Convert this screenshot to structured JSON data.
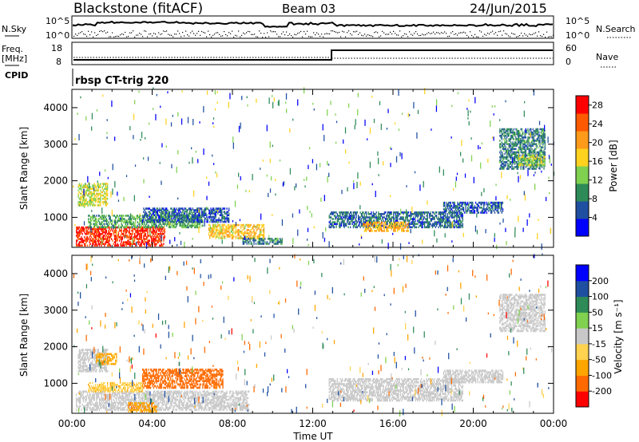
{
  "header": {
    "station": "Blackstone (fitACF)",
    "beam": "Beam 03",
    "date": "24/Jun/2015"
  },
  "top_panels": {
    "nsky_label": "N.Sky",
    "nsearch_label": "N.Search",
    "noise_ticks_left": [
      "10^5",
      "10^0"
    ],
    "noise_ticks_right": [
      "10^5",
      "10^0"
    ],
    "freq_label_top": "Freq.",
    "freq_label_bottom": "[MHz]",
    "freq_ticks": [
      "18",
      "8"
    ],
    "nave_label": "Nave",
    "nave_ticks": [
      "60",
      "0"
    ],
    "cpid_label": "CPID",
    "cpid_value": "rbsp CT-trig 220"
  },
  "colors": {
    "power_scale": [
      "#0000ff",
      "#1f4fa0",
      "#2e8b57",
      "#7fd14f",
      "#ffd21f",
      "#ff9a1a",
      "#ff5a00",
      "#ff0000"
    ],
    "velocity_scale": [
      "#ff0000",
      "#ff6a00",
      "#ffa500",
      "#ffd24f",
      "#c8c8c8",
      "#7fd14f",
      "#2e8b57",
      "#1f4fa0",
      "#0000ff"
    ],
    "ground_scatter": "#bebebe"
  },
  "chart_data": [
    {
      "type": "heatmap",
      "title": "",
      "xlabel": "",
      "ylabel": "Slant Range [km]",
      "xlim": [
        0,
        24
      ],
      "ylim": [
        180,
        4500
      ],
      "x_ticks": [
        "00:00",
        "04:00",
        "08:00",
        "12:00",
        "16:00",
        "20:00",
        "00:00"
      ],
      "y_ticks": [
        "1000",
        "2000",
        "3000",
        "4000"
      ],
      "colorbar_label": "Power [dB]",
      "colorbar_ticks": [
        "4",
        "8",
        "12",
        "16",
        "20",
        "24",
        "28"
      ],
      "colorbar_range": [
        0,
        30
      ],
      "regions": [
        {
          "t": [
            0.2,
            4.6
          ],
          "r": [
            200,
            700
          ],
          "level": 27
        },
        {
          "t": [
            0.3,
            1.8
          ],
          "r": [
            1300,
            1900
          ],
          "level": 15
        },
        {
          "t": [
            0.8,
            6.5
          ],
          "r": [
            700,
            1050
          ],
          "level": 11
        },
        {
          "t": [
            3.5,
            7.8
          ],
          "r": [
            850,
            1250
          ],
          "level": 6
        },
        {
          "t": [
            6.8,
            9.6
          ],
          "r": [
            400,
            800
          ],
          "level": 18
        },
        {
          "t": [
            8.5,
            10.5
          ],
          "r": [
            250,
            400
          ],
          "level": 8
        },
        {
          "t": [
            12.8,
            19.5
          ],
          "r": [
            700,
            1150
          ],
          "level": 7
        },
        {
          "t": [
            14.5,
            16.8
          ],
          "r": [
            600,
            850
          ],
          "level": 19
        },
        {
          "t": [
            18.5,
            21.5
          ],
          "r": [
            1100,
            1400
          ],
          "level": 6
        },
        {
          "t": [
            21.3,
            23.6
          ],
          "r": [
            2300,
            3400
          ],
          "level": 8
        },
        {
          "t": [
            22.2,
            23.6
          ],
          "r": [
            2400,
            2700
          ],
          "level": 14
        }
      ]
    },
    {
      "type": "heatmap",
      "title": "",
      "xlabel": "Time UT",
      "ylabel": "Slant Range [km]",
      "xlim": [
        0,
        24
      ],
      "ylim": [
        180,
        4500
      ],
      "x_ticks": [
        "00:00",
        "04:00",
        "08:00",
        "12:00",
        "16:00",
        "20:00",
        "00:00"
      ],
      "y_ticks": [
        "1000",
        "2000",
        "3000",
        "4000"
      ],
      "colorbar_label": "Velocity [m s⁻¹]",
      "colorbar_ticks": [
        "200",
        "100",
        "50",
        "15",
        "-15",
        "-50",
        "-100",
        "-200"
      ],
      "colorbar_range": [
        -250,
        250
      ],
      "regions": [
        {
          "t": [
            0.2,
            8.8
          ],
          "r": [
            250,
            750
          ],
          "vel": 0
        },
        {
          "t": [
            0.3,
            1.8
          ],
          "r": [
            1300,
            1900
          ],
          "vel": 0
        },
        {
          "t": [
            1.2,
            2.2
          ],
          "r": [
            1500,
            1800
          ],
          "vel": -60
        },
        {
          "t": [
            3.5,
            7.5
          ],
          "r": [
            850,
            1350
          ],
          "vel": -140
        },
        {
          "t": [
            2.8,
            4.2
          ],
          "r": [
            200,
            450
          ],
          "vel": -90
        },
        {
          "t": [
            0.8,
            3.5
          ],
          "r": [
            750,
            1000
          ],
          "vel": -40
        },
        {
          "t": [
            12.8,
            19.5
          ],
          "r": [
            500,
            1100
          ],
          "vel": 0
        },
        {
          "t": [
            18.5,
            21.5
          ],
          "r": [
            1000,
            1350
          ],
          "vel": 0
        },
        {
          "t": [
            21.3,
            23.6
          ],
          "r": [
            2400,
            3400
          ],
          "vel": 0
        }
      ]
    }
  ]
}
